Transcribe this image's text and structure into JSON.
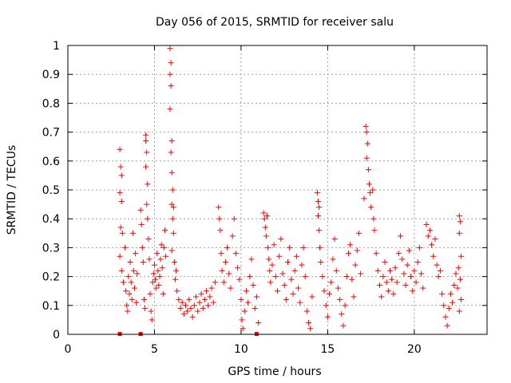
{
  "chart_data": {
    "type": "scatter",
    "title": "Day 056 of 2015, SRMTID for receiver salu",
    "xlabel": "GPS time / hours",
    "ylabel": "SRMTID / TECUs",
    "xlim": [
      0,
      24.2
    ],
    "ylim": [
      0,
      1
    ],
    "xticks": [
      0,
      5,
      10,
      15,
      20
    ],
    "yticks": [
      0,
      0.1,
      0.2,
      0.3,
      0.4,
      0.5,
      0.6,
      0.7,
      0.8,
      0.9,
      1
    ],
    "xtick_labels": [
      "0",
      "5",
      "10",
      "15",
      "20"
    ],
    "ytick_labels": [
      "0",
      "0.1",
      "0.2",
      "0.3",
      "0.4",
      "0.5",
      "0.6",
      "0.7",
      "0.8",
      "0.9",
      "1"
    ],
    "grid": true,
    "marker": "+",
    "color": "#ff0000",
    "series": [
      {
        "name": "SRMTID",
        "points": [
          [
            3.0,
            0.64
          ],
          [
            3.05,
            0.58
          ],
          [
            3.1,
            0.55
          ],
          [
            3.0,
            0.49
          ],
          [
            3.1,
            0.46
          ],
          [
            3.05,
            0.37
          ],
          [
            3.15,
            0.35
          ],
          [
            3.0,
            0.27
          ],
          [
            3.1,
            0.22
          ],
          [
            3.2,
            0.18
          ],
          [
            3.3,
            0.3
          ],
          [
            3.35,
            0.15
          ],
          [
            3.4,
            0.1
          ],
          [
            3.45,
            0.08
          ],
          [
            3.5,
            0.2
          ],
          [
            3.55,
            0.14
          ],
          [
            3.6,
            0.25
          ],
          [
            3.65,
            0.18
          ],
          [
            3.7,
            0.12
          ],
          [
            3.75,
            0.35
          ],
          [
            3.8,
            0.22
          ],
          [
            3.85,
            0.16
          ],
          [
            3.9,
            0.28
          ],
          [
            3.95,
            0.11
          ],
          [
            4.0,
            0.21
          ],
          [
            4.2,
            0.43
          ],
          [
            4.25,
            0.38
          ],
          [
            4.3,
            0.3
          ],
          [
            4.35,
            0.25
          ],
          [
            4.4,
            0.12
          ],
          [
            4.45,
            0.09
          ],
          [
            4.5,
            0.69
          ],
          [
            4.5,
            0.67
          ],
          [
            4.55,
            0.63
          ],
          [
            4.5,
            0.58
          ],
          [
            4.6,
            0.52
          ],
          [
            4.55,
            0.45
          ],
          [
            4.6,
            0.4
          ],
          [
            4.65,
            0.33
          ],
          [
            4.7,
            0.26
          ],
          [
            4.75,
            0.14
          ],
          [
            4.8,
            0.08
          ],
          [
            4.85,
            0.05
          ],
          [
            4.9,
            0.18
          ],
          [
            4.95,
            0.21
          ],
          [
            5.0,
            0.24
          ],
          [
            5.05,
            0.19
          ],
          [
            5.1,
            0.16
          ],
          [
            5.15,
            0.28
          ],
          [
            5.2,
            0.22
          ],
          [
            5.25,
            0.17
          ],
          [
            5.3,
            0.2
          ],
          [
            5.35,
            0.26
          ],
          [
            5.4,
            0.31
          ],
          [
            5.45,
            0.23
          ],
          [
            5.5,
            0.14
          ],
          [
            5.55,
            0.3
          ],
          [
            5.6,
            0.36
          ],
          [
            5.65,
            0.27
          ],
          [
            5.9,
            0.99
          ],
          [
            5.95,
            0.94
          ],
          [
            5.9,
            0.9
          ],
          [
            5.95,
            0.86
          ],
          [
            5.9,
            0.78
          ],
          [
            6.0,
            0.67
          ],
          [
            5.95,
            0.63
          ],
          [
            6.0,
            0.56
          ],
          [
            6.05,
            0.5
          ],
          [
            6.0,
            0.45
          ],
          [
            6.1,
            0.44
          ],
          [
            6.05,
            0.4
          ],
          [
            6.1,
            0.35
          ],
          [
            6.0,
            0.29
          ],
          [
            6.15,
            0.25
          ],
          [
            6.2,
            0.19
          ],
          [
            6.25,
            0.22
          ],
          [
            6.3,
            0.15
          ],
          [
            6.4,
            0.12
          ],
          [
            6.5,
            0.09
          ],
          [
            6.6,
            0.11
          ],
          [
            6.7,
            0.07
          ],
          [
            6.8,
            0.1
          ],
          [
            6.9,
            0.08
          ],
          [
            7.0,
            0.12
          ],
          [
            7.1,
            0.09
          ],
          [
            7.2,
            0.06
          ],
          [
            7.3,
            0.1
          ],
          [
            7.4,
            0.13
          ],
          [
            7.5,
            0.08
          ],
          [
            7.6,
            0.11
          ],
          [
            7.7,
            0.14
          ],
          [
            7.8,
            0.09
          ],
          [
            7.9,
            0.12
          ],
          [
            8.0,
            0.15
          ],
          [
            8.1,
            0.1
          ],
          [
            8.2,
            0.13
          ],
          [
            8.3,
            0.16
          ],
          [
            8.4,
            0.11
          ],
          [
            8.5,
            0.18
          ],
          [
            8.7,
            0.44
          ],
          [
            8.75,
            0.4
          ],
          [
            8.8,
            0.36
          ],
          [
            8.85,
            0.28
          ],
          [
            8.9,
            0.22
          ],
          [
            9.0,
            0.18
          ],
          [
            9.1,
            0.25
          ],
          [
            9.2,
            0.3
          ],
          [
            9.3,
            0.21
          ],
          [
            9.4,
            0.16
          ],
          [
            9.5,
            0.34
          ],
          [
            9.6,
            0.4
          ],
          [
            9.7,
            0.28
          ],
          [
            9.8,
            0.23
          ],
          [
            9.9,
            0.19
          ],
          [
            10.0,
            0.12
          ],
          [
            10.05,
            0.05
          ],
          [
            10.1,
            0.02
          ],
          [
            10.2,
            0.08
          ],
          [
            10.3,
            0.15
          ],
          [
            10.4,
            0.11
          ],
          [
            10.5,
            0.2
          ],
          [
            10.6,
            0.26
          ],
          [
            10.7,
            0.17
          ],
          [
            10.8,
            0.09
          ],
          [
            10.9,
            0.13
          ],
          [
            11.0,
            0.04
          ],
          [
            11.3,
            0.42
          ],
          [
            11.35,
            0.4
          ],
          [
            11.4,
            0.37
          ],
          [
            11.45,
            0.34
          ],
          [
            11.5,
            0.41
          ],
          [
            11.55,
            0.3
          ],
          [
            11.6,
            0.26
          ],
          [
            11.65,
            0.22
          ],
          [
            11.7,
            0.18
          ],
          [
            11.8,
            0.24
          ],
          [
            11.9,
            0.31
          ],
          [
            12.0,
            0.2
          ],
          [
            12.1,
            0.15
          ],
          [
            12.2,
            0.27
          ],
          [
            12.3,
            0.33
          ],
          [
            12.4,
            0.21
          ],
          [
            12.5,
            0.17
          ],
          [
            12.6,
            0.12
          ],
          [
            12.7,
            0.25
          ],
          [
            12.8,
            0.3
          ],
          [
            12.9,
            0.19
          ],
          [
            13.0,
            0.14
          ],
          [
            13.1,
            0.22
          ],
          [
            13.2,
            0.27
          ],
          [
            13.3,
            0.16
          ],
          [
            13.4,
            0.11
          ],
          [
            13.5,
            0.24
          ],
          [
            13.6,
            0.3
          ],
          [
            13.7,
            0.2
          ],
          [
            13.8,
            0.08
          ],
          [
            13.9,
            0.04
          ],
          [
            14.0,
            0.02
          ],
          [
            14.1,
            0.13
          ],
          [
            14.4,
            0.49
          ],
          [
            14.45,
            0.46
          ],
          [
            14.5,
            0.44
          ],
          [
            14.45,
            0.41
          ],
          [
            14.5,
            0.36
          ],
          [
            14.55,
            0.3
          ],
          [
            14.6,
            0.25
          ],
          [
            14.7,
            0.2
          ],
          [
            14.8,
            0.15
          ],
          [
            14.9,
            0.1
          ],
          [
            15.0,
            0.06
          ],
          [
            15.1,
            0.14
          ],
          [
            15.2,
            0.18
          ],
          [
            15.3,
            0.26
          ],
          [
            15.4,
            0.33
          ],
          [
            15.5,
            0.22
          ],
          [
            15.6,
            0.16
          ],
          [
            15.7,
            0.12
          ],
          [
            15.8,
            0.07
          ],
          [
            15.9,
            0.03
          ],
          [
            16.0,
            0.1
          ],
          [
            16.1,
            0.2
          ],
          [
            16.2,
            0.28
          ],
          [
            16.3,
            0.31
          ],
          [
            16.4,
            0.19
          ],
          [
            16.5,
            0.13
          ],
          [
            16.6,
            0.24
          ],
          [
            16.7,
            0.29
          ],
          [
            16.8,
            0.35
          ],
          [
            16.9,
            0.21
          ],
          [
            17.1,
            0.47
          ],
          [
            17.2,
            0.72
          ],
          [
            17.25,
            0.7
          ],
          [
            17.3,
            0.66
          ],
          [
            17.25,
            0.61
          ],
          [
            17.35,
            0.57
          ],
          [
            17.4,
            0.52
          ],
          [
            17.45,
            0.49
          ],
          [
            17.5,
            0.44
          ],
          [
            17.6,
            0.5
          ],
          [
            17.65,
            0.4
          ],
          [
            17.7,
            0.36
          ],
          [
            17.8,
            0.28
          ],
          [
            17.9,
            0.22
          ],
          [
            18.0,
            0.17
          ],
          [
            18.1,
            0.13
          ],
          [
            18.2,
            0.2
          ],
          [
            18.3,
            0.25
          ],
          [
            18.4,
            0.18
          ],
          [
            18.5,
            0.15
          ],
          [
            18.6,
            0.22
          ],
          [
            18.7,
            0.19
          ],
          [
            18.8,
            0.14
          ],
          [
            18.9,
            0.23
          ],
          [
            19.0,
            0.18
          ],
          [
            19.1,
            0.28
          ],
          [
            19.2,
            0.34
          ],
          [
            19.3,
            0.26
          ],
          [
            19.4,
            0.21
          ],
          [
            19.5,
            0.17
          ],
          [
            19.6,
            0.24
          ],
          [
            19.7,
            0.29
          ],
          [
            19.8,
            0.2
          ],
          [
            19.9,
            0.15
          ],
          [
            20.0,
            0.22
          ],
          [
            20.1,
            0.18
          ],
          [
            20.2,
            0.25
          ],
          [
            20.3,
            0.3
          ],
          [
            20.4,
            0.21
          ],
          [
            20.5,
            0.16
          ],
          [
            20.7,
            0.38
          ],
          [
            20.8,
            0.34
          ],
          [
            20.9,
            0.36
          ],
          [
            21.0,
            0.31
          ],
          [
            21.1,
            0.27
          ],
          [
            21.2,
            0.33
          ],
          [
            21.3,
            0.24
          ],
          [
            21.4,
            0.2
          ],
          [
            21.5,
            0.22
          ],
          [
            21.6,
            0.14
          ],
          [
            21.7,
            0.1
          ],
          [
            21.8,
            0.06
          ],
          [
            21.9,
            0.03
          ],
          [
            22.0,
            0.09
          ],
          [
            22.1,
            0.14
          ],
          [
            22.2,
            0.11
          ],
          [
            22.3,
            0.17
          ],
          [
            22.4,
            0.21
          ],
          [
            22.5,
            0.16
          ],
          [
            22.55,
            0.23
          ],
          [
            22.6,
            0.41
          ],
          [
            22.65,
            0.39
          ],
          [
            22.6,
            0.35
          ],
          [
            22.7,
            0.27
          ],
          [
            22.65,
            0.19
          ],
          [
            22.7,
            0.12
          ],
          [
            22.6,
            0.08
          ]
        ]
      }
    ],
    "zero_markers": [
      3.0,
      4.2,
      10.9
    ]
  }
}
